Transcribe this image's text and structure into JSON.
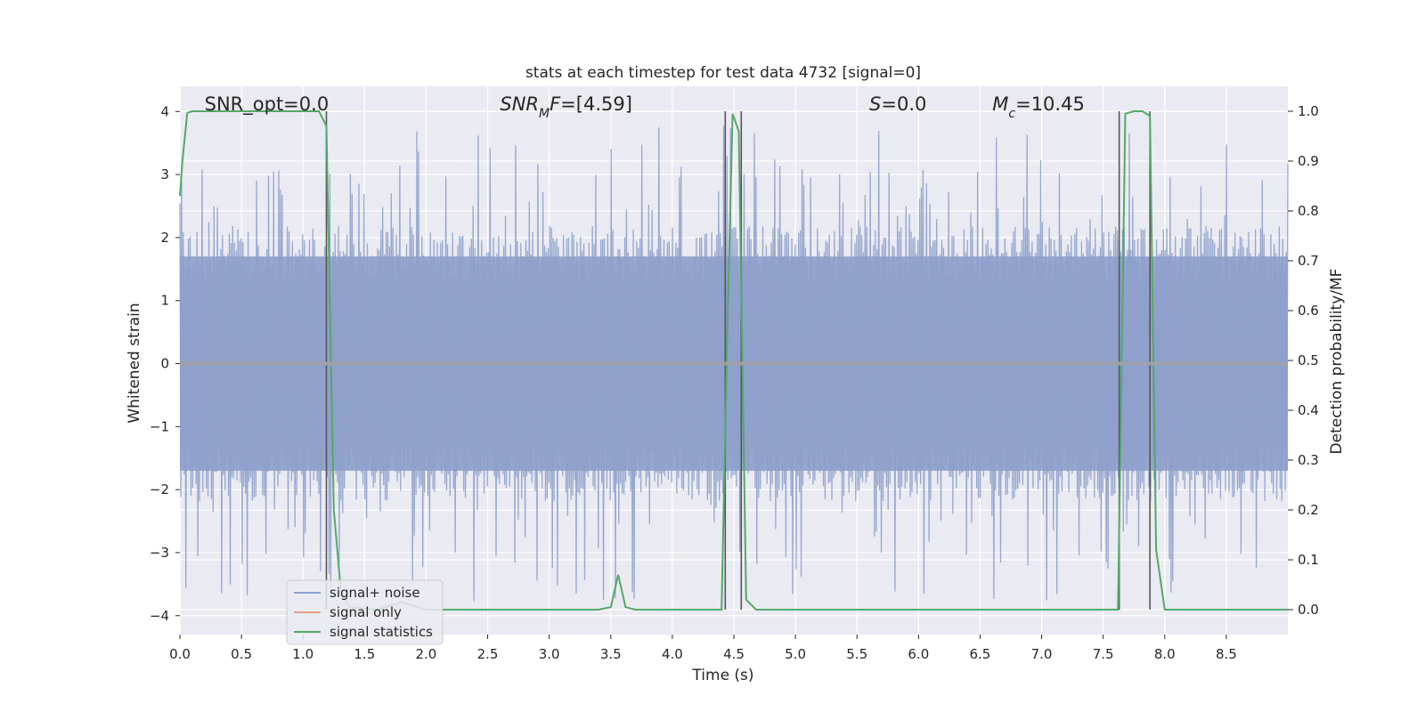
{
  "chart_data": {
    "type": "line",
    "title": "stats at each timestep for test data 4732 [signal=0]",
    "xlabel": "Time (s)",
    "ylabel_left": "Whitened strain",
    "ylabel_right": "Detection probability/MF",
    "xlim": [
      0,
      9.0
    ],
    "ylim_left": [
      -4.3,
      4.4
    ],
    "ylim_right": [
      -0.05,
      1.05
    ],
    "xticks": [
      0.0,
      0.5,
      1.0,
      1.5,
      2.0,
      2.5,
      3.0,
      3.5,
      4.0,
      4.5,
      5.0,
      5.5,
      6.0,
      6.5,
      7.0,
      7.5,
      8.0,
      8.5
    ],
    "xtick_labels": [
      "0.0",
      "0.5",
      "1.0",
      "1.5",
      "2.0",
      "2.5",
      "3.0",
      "3.5",
      "4.0",
      "4.5",
      "5.0",
      "5.5",
      "6.0",
      "6.5",
      "7.0",
      "7.5",
      "8.0",
      "8.5"
    ],
    "yticks_left": [
      4,
      3,
      2,
      1,
      0,
      -1,
      -2,
      -3,
      -4
    ],
    "ytick_labels_left": [
      "4",
      "3",
      "2",
      "1",
      "0",
      "−1",
      "−2",
      "−3",
      "−4"
    ],
    "yticks_right": [
      1.0,
      0.9,
      0.8,
      0.7,
      0.6,
      0.5,
      0.4,
      0.3,
      0.2,
      0.1,
      0.0
    ],
    "ytick_labels_right": [
      "1.0",
      "0.9",
      "0.8",
      "0.7",
      "0.6",
      "0.5",
      "0.4",
      "0.3",
      "0.2",
      "0.1",
      "0.0"
    ],
    "grid": true,
    "legend_location": "lower-left",
    "annotations": [
      {
        "text": "SNR_opt=0.0",
        "x": 0.2
      },
      {
        "text": "SNR_M F=[4.59]",
        "x": 2.6
      },
      {
        "text": "S=0.0",
        "x": 5.6
      },
      {
        "text": "M_c=10.45",
        "x": 6.6
      }
    ],
    "noise_envelope": {
      "baseline_upper": 1.9,
      "baseline_lower": -1.9,
      "max_spike": 3.8,
      "min_spike": -3.8
    },
    "detection_boundaries_s": [
      1.19,
      4.43,
      4.56,
      7.63,
      7.88
    ],
    "series": [
      {
        "name": "signal+ noise",
        "color": "#8da0cb",
        "axis": "left"
      },
      {
        "name": "signal only",
        "color": "#e8a07e",
        "axis": "left",
        "values": [
          0
        ]
      },
      {
        "name": "signal statistics",
        "color": "#55a868",
        "axis": "right",
        "x": [
          0.0,
          0.02,
          0.06,
          0.1,
          0.15,
          1.13,
          1.19,
          1.25,
          1.31,
          1.38,
          1.6,
          1.8,
          2.0,
          3.4,
          3.5,
          3.56,
          3.62,
          3.7,
          4.4,
          4.45,
          4.49,
          4.54,
          4.6,
          4.68,
          7.62,
          7.68,
          7.75,
          7.82,
          7.88,
          7.93,
          8.0,
          9.0
        ],
        "values": [
          0.83,
          0.9,
          0.997,
          1.0,
          1.0,
          1.0,
          0.97,
          0.2,
          0.03,
          0.005,
          0.0,
          0.015,
          0.0,
          0.0,
          0.005,
          0.07,
          0.005,
          0.0,
          0.0,
          0.6,
          0.995,
          0.96,
          0.02,
          0.0,
          0.0,
          0.995,
          1.0,
          1.0,
          0.99,
          0.12,
          0.0,
          0.0
        ]
      }
    ]
  }
}
